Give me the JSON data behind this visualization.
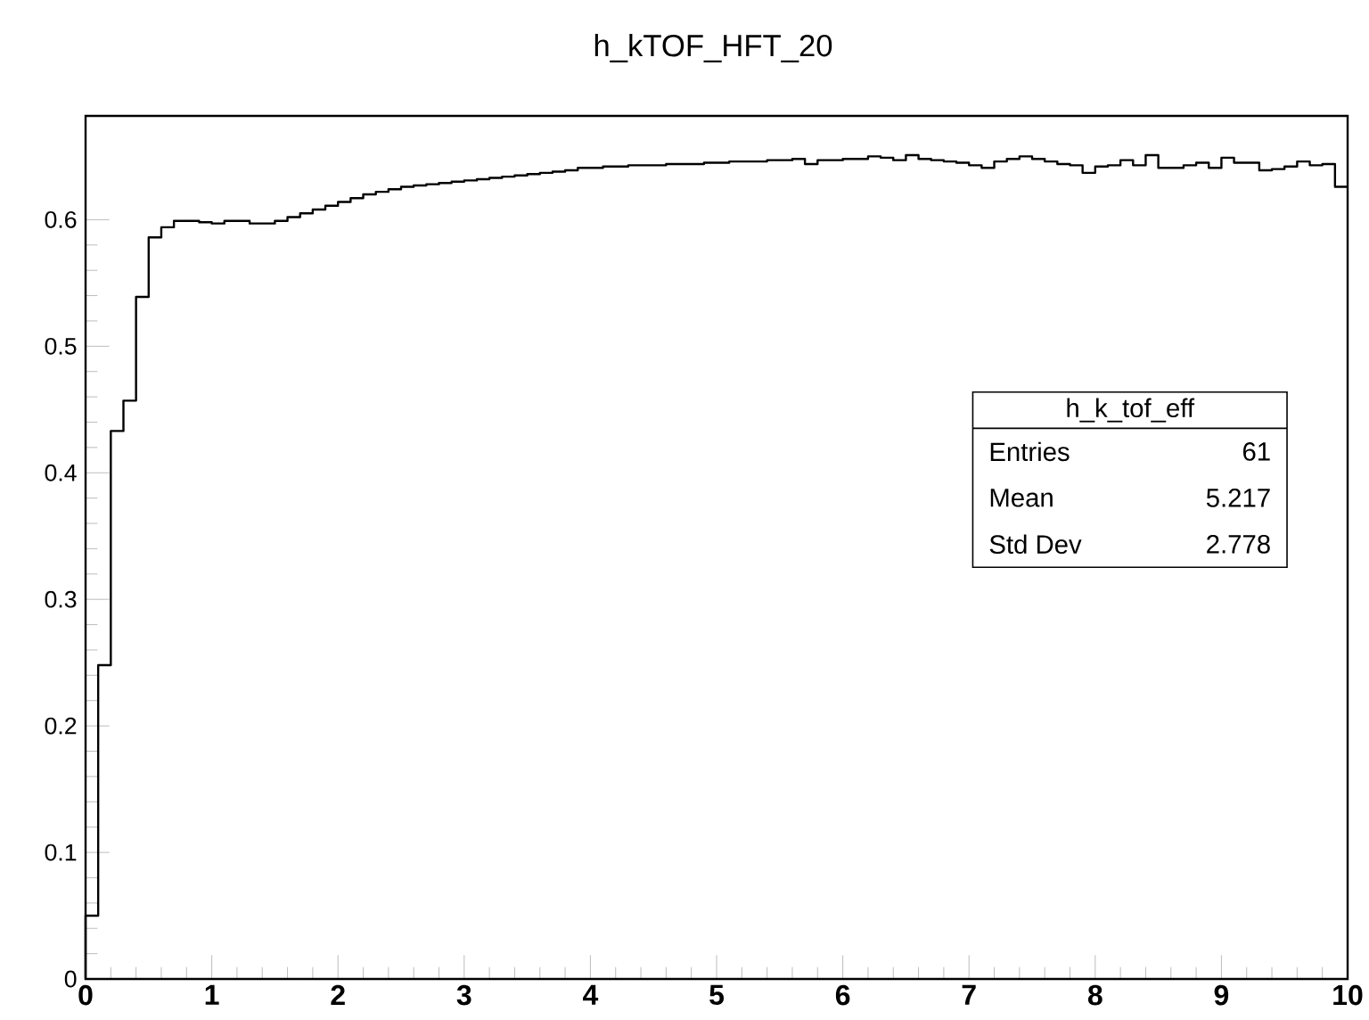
{
  "chart_data": {
    "type": "histogram",
    "title": "h_kTOF_HFT_20",
    "bins": [
      0,
      0.1,
      0.2,
      0.3,
      0.4,
      0.5,
      0.6,
      0.7,
      0.8,
      0.9,
      1,
      1.1,
      1.2,
      1.3,
      1.4,
      1.5,
      1.6,
      1.7,
      1.8,
      1.9,
      2,
      2.1,
      2.2,
      2.3,
      2.4,
      2.5,
      2.6,
      2.7,
      2.8,
      2.9,
      3,
      3.1,
      3.2,
      3.3,
      3.4,
      3.5,
      3.6,
      3.7,
      3.8,
      3.9,
      4,
      4.1,
      4.2,
      4.3,
      4.4,
      4.5,
      4.6,
      4.7,
      4.8,
      4.9,
      5,
      5.1,
      5.2,
      5.3,
      5.4,
      5.5,
      5.6,
      5.7,
      5.8,
      5.9,
      6,
      6.1,
      6.2,
      6.3,
      6.4,
      6.5,
      6.6,
      6.7,
      6.8,
      6.9,
      7,
      7.1,
      7.2,
      7.3,
      7.4,
      7.5,
      7.6,
      7.7,
      7.8,
      7.9,
      8,
      8.1,
      8.2,
      8.3,
      8.4,
      8.5,
      8.6,
      8.7,
      8.8,
      8.9,
      9,
      9.1,
      9.2,
      9.3,
      9.4,
      9.5,
      9.6,
      9.7,
      9.8,
      9.9,
      10
    ],
    "values": [
      0.05,
      0.248,
      0.433,
      0.457,
      0.539,
      0.586,
      0.594,
      0.599,
      0.599,
      0.598,
      0.597,
      0.599,
      0.599,
      0.597,
      0.597,
      0.599,
      0.602,
      0.605,
      0.608,
      0.611,
      0.614,
      0.617,
      0.62,
      0.622,
      0.624,
      0.626,
      0.627,
      0.628,
      0.629,
      0.63,
      0.631,
      0.632,
      0.633,
      0.634,
      0.635,
      0.636,
      0.637,
      0.638,
      0.639,
      0.641,
      0.641,
      0.642,
      0.642,
      0.643,
      0.643,
      0.643,
      0.644,
      0.644,
      0.644,
      0.645,
      0.645,
      0.646,
      0.646,
      0.646,
      0.647,
      0.647,
      0.648,
      0.644,
      0.647,
      0.647,
      0.648,
      0.648,
      0.65,
      0.649,
      0.647,
      0.651,
      0.648,
      0.647,
      0.646,
      0.645,
      0.643,
      0.641,
      0.646,
      0.648,
      0.65,
      0.648,
      0.646,
      0.644,
      0.643,
      0.637,
      0.642,
      0.643,
      0.647,
      0.643,
      0.651,
      0.641,
      0.641,
      0.643,
      0.645,
      0.641,
      0.649,
      0.645,
      0.645,
      0.639,
      0.64,
      0.642,
      0.646,
      0.643,
      0.644,
      0.626
    ],
    "color": "#000000",
    "xlim": [
      0,
      10
    ],
    "ylim": [
      0,
      0.682
    ],
    "xticks": [
      0,
      1,
      2,
      3,
      4,
      5,
      6,
      7,
      8,
      9,
      10
    ],
    "yticks": [
      0,
      0.1,
      0.2,
      0.3,
      0.4,
      0.5,
      0.6
    ],
    "annotations": [
      "h_k_tof_eff",
      "Entries",
      "61",
      "Mean",
      "5.217",
      "Std Dev",
      "2.778"
    ]
  }
}
